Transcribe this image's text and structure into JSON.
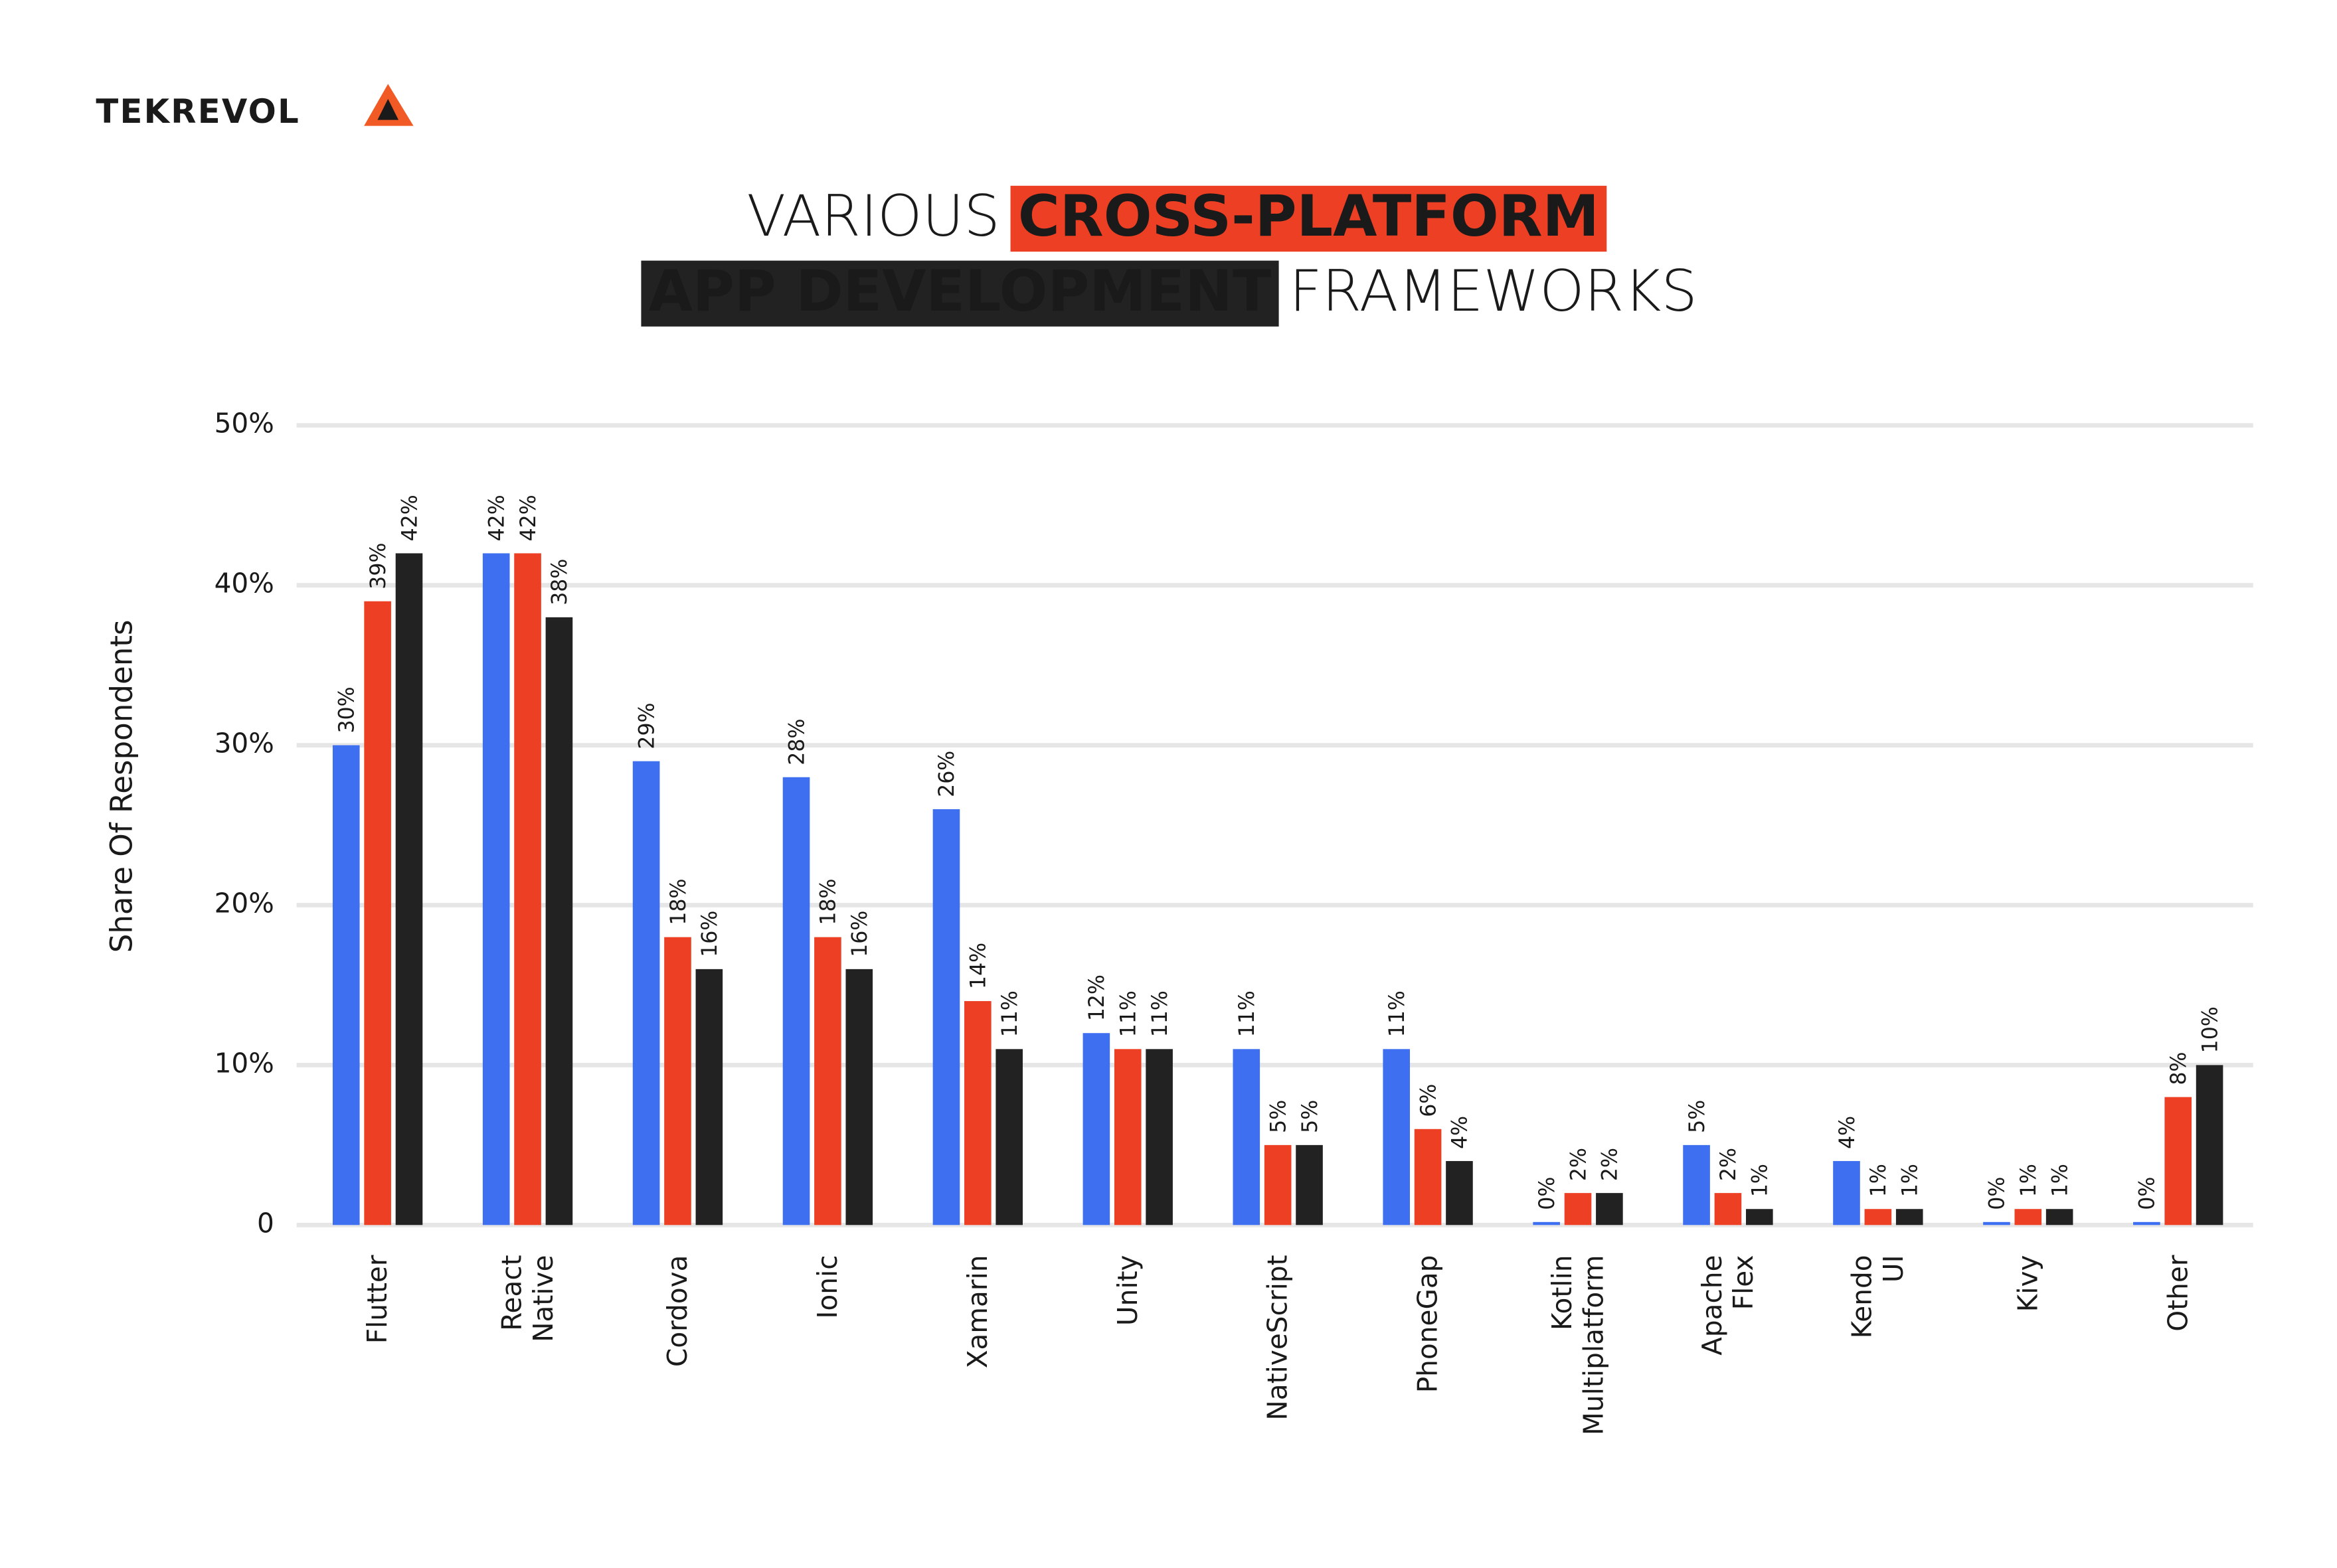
{
  "logo": "TEKREVOL",
  "chart_data": {
    "type": "bar",
    "title_lines": [
      [
        "VARIOUS",
        "CROSS-PLATFORM"
      ],
      [
        "APP DEVELOPMENT",
        "FRAMEWORKS"
      ]
    ],
    "y_label": "Share Of Respondents",
    "categories": [
      "Flutter",
      "React Native",
      "Cordova",
      "Ionic",
      "Xamarin",
      "Unity",
      "NativeScript",
      "PhoneGap",
      "Kotlin Multiplatform",
      "Apache Flex",
      "Kendo UI",
      "Kivy",
      "Other"
    ],
    "series": [
      {
        "color": "#3e6ff0",
        "values": [
          30,
          42,
          29,
          28,
          26,
          12,
          11,
          11,
          0,
          5,
          4,
          0,
          0
        ],
        "value_labels": [
          "30%",
          "42%",
          "29%",
          "28%",
          "26%",
          "12%",
          "11%",
          "11%",
          "0%",
          "5%",
          "4%",
          "0%",
          "0%"
        ]
      },
      {
        "color": "#ec3f23",
        "values": [
          39,
          42,
          18,
          18,
          14,
          11,
          5,
          6,
          2,
          2,
          1,
          1,
          8
        ],
        "value_labels": [
          "39%",
          "42%",
          "18%",
          "18%",
          "14%",
          "11%",
          "5%",
          "6%",
          "2%",
          "2%",
          "1%",
          "1%",
          "8%"
        ]
      },
      {
        "color": "#222222",
        "values": [
          42,
          38,
          16,
          16,
          11,
          11,
          5,
          4,
          2,
          1,
          1,
          1,
          10
        ],
        "value_labels": [
          "42%",
          "38%",
          "16%",
          "16%",
          "11%",
          "11%",
          "5%",
          "4%",
          "2%",
          "1%",
          "1%",
          "1%",
          "10%"
        ]
      }
    ],
    "ylim": [
      0,
      50
    ],
    "yticks": [
      0,
      {
        "value": 10,
        "label": "10%"
      },
      {
        "value": 20,
        "label": "20%"
      },
      {
        "value": 30,
        "label": "30%"
      },
      {
        "value": 40,
        "label": "40%"
      },
      {
        "value": 50,
        "label": "50%"
      }
    ],
    "grid": true
  }
}
